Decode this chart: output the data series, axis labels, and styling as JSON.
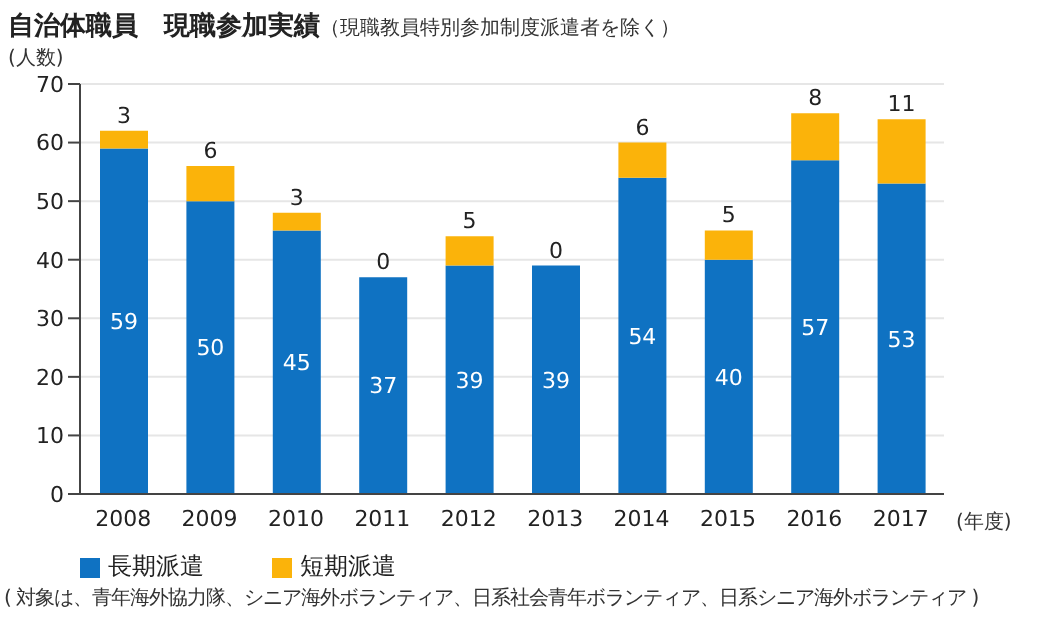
{
  "chart_data": {
    "type": "bar",
    "title": "自治体職員　現職参加実績",
    "subtitle": "（現職教員特別参加制度派遣者を除く）",
    "xlabel": "(年度)",
    "ylabel": "(人数)",
    "categories": [
      "2008",
      "2009",
      "2010",
      "2011",
      "2012",
      "2013",
      "2014",
      "2015",
      "2016",
      "2017"
    ],
    "series": [
      {
        "name": "長期派遣",
        "color": "#0f72c2",
        "values": [
          59,
          50,
          45,
          37,
          39,
          39,
          54,
          40,
          57,
          53
        ]
      },
      {
        "name": "短期派遣",
        "color": "#fbb30a",
        "values": [
          3,
          6,
          3,
          0,
          5,
          0,
          6,
          5,
          8,
          11
        ]
      }
    ],
    "stacked": true,
    "ylim": [
      0,
      70
    ],
    "yticks": [
      0,
      10,
      20,
      30,
      40,
      50,
      60,
      70
    ],
    "grid": "y",
    "data_labels": true,
    "legend": "bottom left",
    "annotations": [
      "( 対象は、青年海外協力隊、シニア海外ボランティア、日系社会青年ボランティア、日系シニア海外ボランティア )"
    ]
  }
}
